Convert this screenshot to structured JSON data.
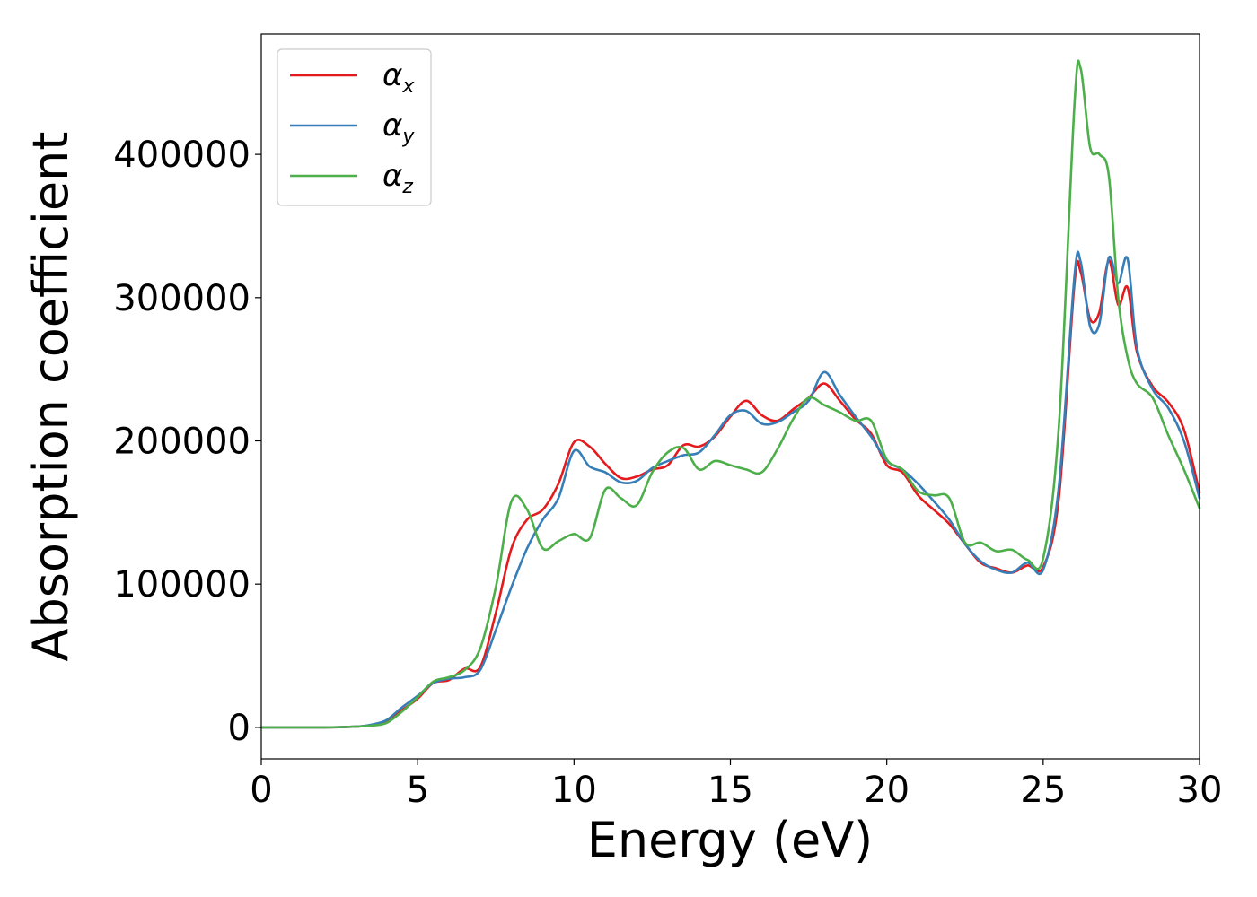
{
  "chart_data": {
    "type": "line",
    "xlabel": "Energy (eV)",
    "ylabel": "Absorption coefficient",
    "xlim": [
      0,
      30
    ],
    "ylim": [
      -22000,
      484000
    ],
    "xticks": [
      0,
      5,
      10,
      15,
      20,
      25,
      30
    ],
    "xtick_labels": [
      "0",
      "5",
      "10",
      "15",
      "20",
      "25",
      "30"
    ],
    "yticks": [
      0,
      100000,
      200000,
      300000,
      400000
    ],
    "ytick_labels": [
      "0",
      "100000",
      "200000",
      "300000",
      "400000"
    ],
    "grid": false,
    "legend_position": "top-left",
    "series": [
      {
        "name": "α",
        "subscript": "x",
        "color": "#e41a1c",
        "x": [
          0,
          2,
          3,
          3.5,
          4,
          4.5,
          5,
          5.5,
          6,
          6.5,
          7,
          7.5,
          8,
          8.5,
          9,
          9.5,
          10,
          10.5,
          11,
          11.5,
          12,
          12.5,
          13,
          13.5,
          14,
          14.5,
          15,
          15.5,
          16,
          16.5,
          17,
          17.5,
          18,
          18.5,
          19,
          19.5,
          20,
          20.5,
          21,
          21.5,
          22,
          22.5,
          23,
          23.5,
          24,
          24.5,
          25,
          25.5,
          26,
          26.2,
          26.5,
          26.8,
          27.1,
          27.4,
          27.7,
          28,
          28.5,
          29,
          29.5,
          30
        ],
        "y": [
          0,
          0,
          500,
          1500,
          4000,
          12000,
          20000,
          31000,
          33000,
          41000,
          42000,
          80000,
          125000,
          145000,
          152000,
          170000,
          199000,
          196000,
          184000,
          174000,
          175000,
          180000,
          183000,
          197000,
          196000,
          203000,
          217000,
          228000,
          218000,
          214000,
          222000,
          230000,
          240000,
          228000,
          215000,
          205000,
          183000,
          178000,
          162000,
          152000,
          142000,
          128000,
          115000,
          111000,
          108000,
          113000,
          112000,
          160000,
          310000,
          318000,
          285000,
          290000,
          326000,
          295000,
          307000,
          262000,
          238000,
          227000,
          208000,
          164000
        ]
      },
      {
        "name": "α",
        "subscript": "y",
        "color": "#377eb8",
        "x": [
          0,
          2,
          3,
          3.5,
          4,
          4.5,
          5,
          5.5,
          6,
          6.5,
          7,
          7.5,
          8,
          8.5,
          9,
          9.5,
          10,
          10.5,
          11,
          11.5,
          12,
          12.5,
          13,
          13.5,
          14,
          14.5,
          15,
          15.5,
          16,
          16.5,
          17,
          17.5,
          18,
          18.5,
          19,
          19.5,
          20,
          20.5,
          21,
          21.5,
          22,
          22.5,
          23,
          23.5,
          24,
          24.5,
          25,
          25.5,
          26,
          26.2,
          26.5,
          26.8,
          27.1,
          27.4,
          27.7,
          28,
          28.5,
          29,
          29.5,
          30
        ],
        "y": [
          0,
          0,
          500,
          1800,
          5000,
          14000,
          22000,
          31000,
          34000,
          35000,
          40000,
          68000,
          98000,
          125000,
          145000,
          160000,
          193000,
          182000,
          178000,
          171000,
          172000,
          181000,
          186000,
          190000,
          192000,
          204000,
          218000,
          221000,
          212000,
          213000,
          220000,
          228000,
          248000,
          232000,
          217000,
          203000,
          186000,
          180000,
          170000,
          158000,
          145000,
          128000,
          116000,
          110000,
          108000,
          115000,
          110000,
          168000,
          315000,
          325000,
          280000,
          282000,
          328000,
          310000,
          327000,
          265000,
          236000,
          223000,
          200000,
          160000
        ]
      },
      {
        "name": "α",
        "subscript": "z",
        "color": "#4daf4a",
        "x": [
          0,
          2,
          3,
          3.5,
          4,
          4.5,
          5,
          5.5,
          6,
          6.5,
          7,
          7.5,
          8,
          8.5,
          9,
          9.5,
          10,
          10.5,
          11,
          11.5,
          12,
          12.5,
          13,
          13.5,
          14,
          14.5,
          15,
          15.5,
          16,
          16.5,
          17,
          17.5,
          18,
          18.5,
          19,
          19.5,
          20,
          20.5,
          21,
          21.5,
          22,
          22.5,
          23,
          23.5,
          24,
          24.5,
          25,
          25.5,
          26,
          26.2,
          26.5,
          26.8,
          27.1,
          27.4,
          27.7,
          28,
          28.5,
          29,
          29.5,
          30
        ],
        "y": [
          0,
          0,
          500,
          1200,
          3000,
          11000,
          21000,
          32000,
          35000,
          40000,
          55000,
          98000,
          158000,
          152000,
          125000,
          130000,
          135000,
          132000,
          166000,
          160000,
          155000,
          178000,
          192000,
          195000,
          180000,
          186000,
          183000,
          180000,
          178000,
          194000,
          215000,
          230000,
          225000,
          220000,
          214000,
          214000,
          187000,
          180000,
          165000,
          162000,
          160000,
          129000,
          129000,
          123000,
          124000,
          117000,
          118000,
          210000,
          435000,
          460000,
          405000,
          400000,
          385000,
          300000,
          258000,
          240000,
          230000,
          204000,
          180000,
          153000
        ]
      }
    ]
  }
}
